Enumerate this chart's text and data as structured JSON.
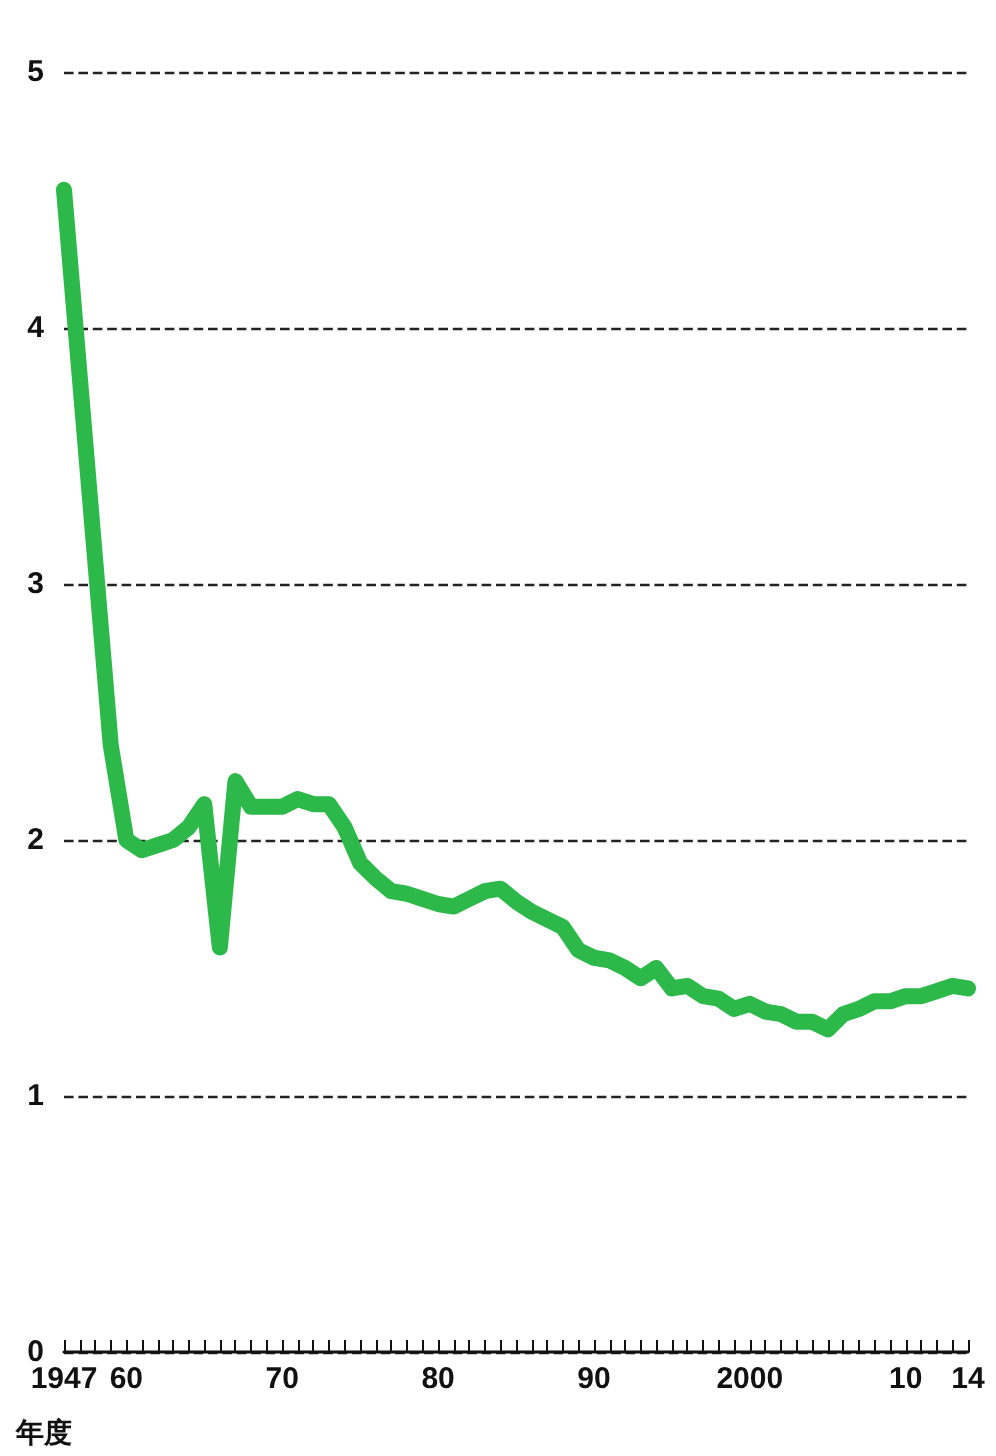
{
  "chart_data": {
    "type": "line",
    "xlabel": "年度",
    "categories": [
      "1947",
      null,
      null,
      null,
      "60",
      null,
      null,
      null,
      null,
      null,
      null,
      null,
      null,
      null,
      "70",
      null,
      null,
      null,
      null,
      null,
      null,
      null,
      null,
      null,
      "80",
      null,
      null,
      null,
      null,
      null,
      null,
      null,
      null,
      null,
      "90",
      null,
      null,
      null,
      null,
      null,
      null,
      null,
      null,
      null,
      "2000",
      null,
      null,
      null,
      null,
      null,
      null,
      null,
      null,
      null,
      "10",
      null,
      null,
      null,
      "14"
    ],
    "series": [
      {
        "color": "#2db84a",
        "values": [
          4.54,
          null,
          null,
          2.37,
          2.0,
          1.96,
          1.98,
          2.0,
          2.05,
          2.14,
          1.58,
          2.23,
          2.13,
          2.13,
          2.13,
          2.16,
          2.14,
          2.14,
          2.05,
          1.91,
          1.85,
          1.8,
          1.79,
          1.77,
          1.75,
          1.74,
          1.77,
          1.8,
          1.81,
          1.76,
          1.72,
          1.69,
          1.66,
          1.57,
          1.54,
          1.53,
          1.5,
          1.46,
          1.5,
          1.42,
          1.43,
          1.39,
          1.38,
          1.34,
          1.36,
          1.33,
          1.32,
          1.29,
          1.29,
          1.26,
          1.32,
          1.34,
          1.37,
          1.37,
          1.39,
          1.39,
          1.41,
          1.43,
          1.42
        ]
      }
    ],
    "ylim": [
      0,
      5
    ],
    "yticks": [
      0,
      1,
      2,
      3,
      4,
      5
    ],
    "grid": "y",
    "line_style": "solid"
  }
}
